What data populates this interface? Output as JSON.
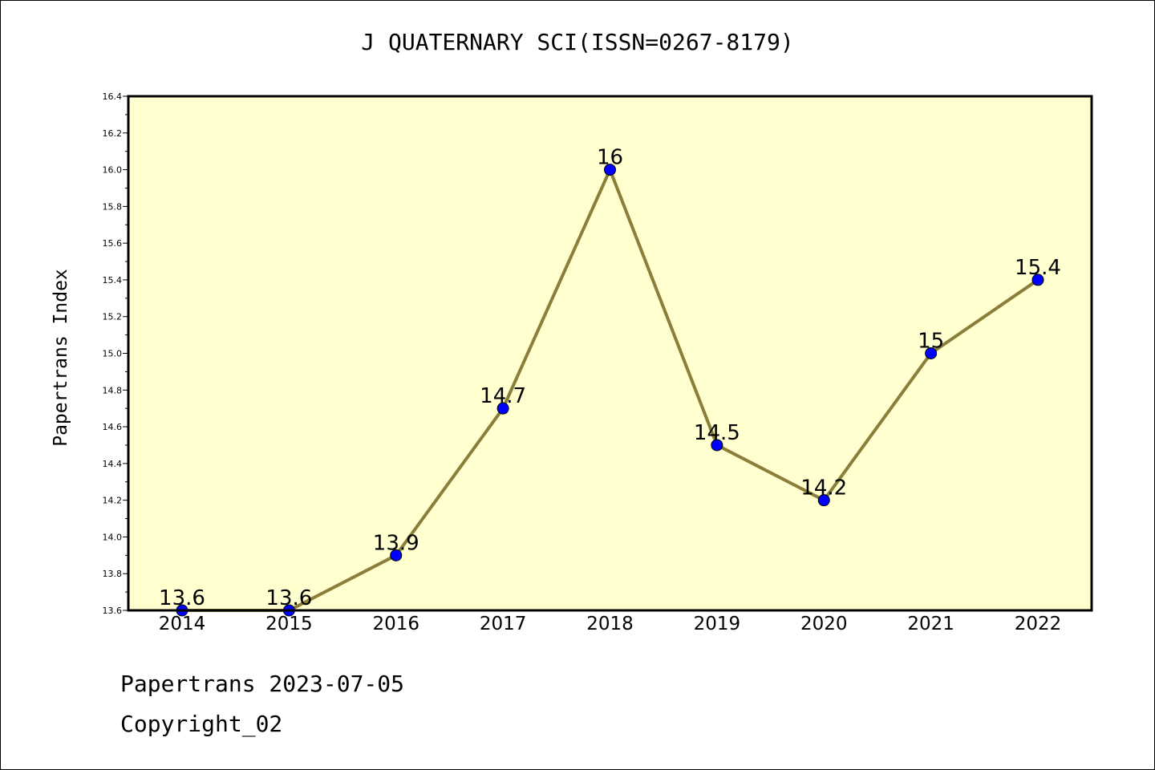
{
  "page": {
    "title": "J QUATERNARY SCI(ISSN=0267-8179)",
    "footer_line1": "Papertrans 2023-07-05",
    "footer_line2": "Copyright_02"
  },
  "chart_data": {
    "type": "line",
    "title": "J QUATERNARY SCI(ISSN=0267-8179)",
    "xlabel": "",
    "ylabel": "Papertrans Index",
    "categories": [
      "2014",
      "2015",
      "2016",
      "2017",
      "2018",
      "2019",
      "2020",
      "2021",
      "2022"
    ],
    "values": [
      13.6,
      13.6,
      13.9,
      14.7,
      16.0,
      14.5,
      14.2,
      15.0,
      15.4
    ],
    "data_labels": [
      "13.6",
      "13.6",
      "13.9",
      "14.7",
      "16",
      "14.5",
      "14.2",
      "15",
      "15.4"
    ],
    "ylim": [
      13.6,
      16.4
    ],
    "yticks": [
      "13.6",
      "13.8",
      "14.0",
      "14.2",
      "14.4",
      "14.6",
      "14.8",
      "15.0",
      "15.2",
      "15.4",
      "15.6",
      "15.8",
      "16.0",
      "16.2",
      "16.4"
    ],
    "grid": false,
    "legend": "none",
    "colors": {
      "plot_background": "#FFFFD0",
      "line": "#8B7D3A",
      "marker": "#0000FF"
    }
  }
}
